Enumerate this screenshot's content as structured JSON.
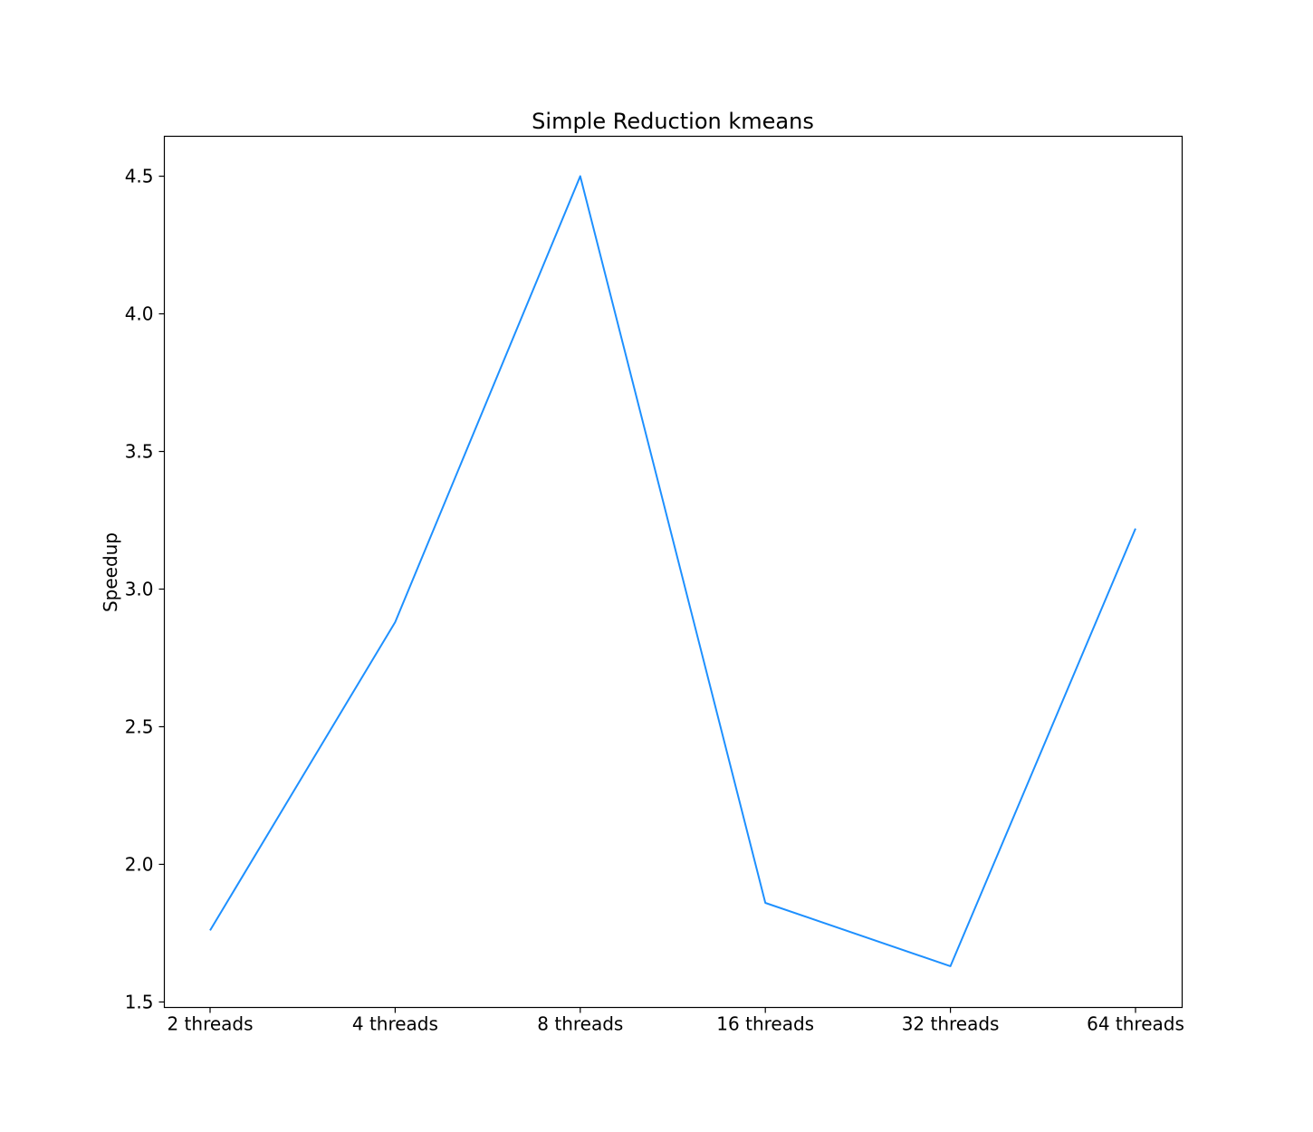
{
  "chart_data": {
    "type": "line",
    "title": "Simple Reduction kmeans",
    "xlabel": "",
    "ylabel": "Speedup",
    "categories": [
      "2 threads",
      "4 threads",
      "8 threads",
      "16 threads",
      "32 threads",
      "64 threads"
    ],
    "series": [
      {
        "values": [
          1.76,
          2.88,
          4.5,
          1.86,
          1.63,
          3.22
        ],
        "color": "#1e90ff"
      }
    ],
    "ylim": [
      1.48,
      4.645
    ],
    "yticks": [
      1.5,
      2.0,
      2.5,
      3.0,
      3.5,
      4.0,
      4.5
    ],
    "ytick_labels": [
      "1.5",
      "2.0",
      "2.5",
      "3.0",
      "3.5",
      "4.0",
      "4.5"
    ],
    "grid": false,
    "legend": "none"
  }
}
